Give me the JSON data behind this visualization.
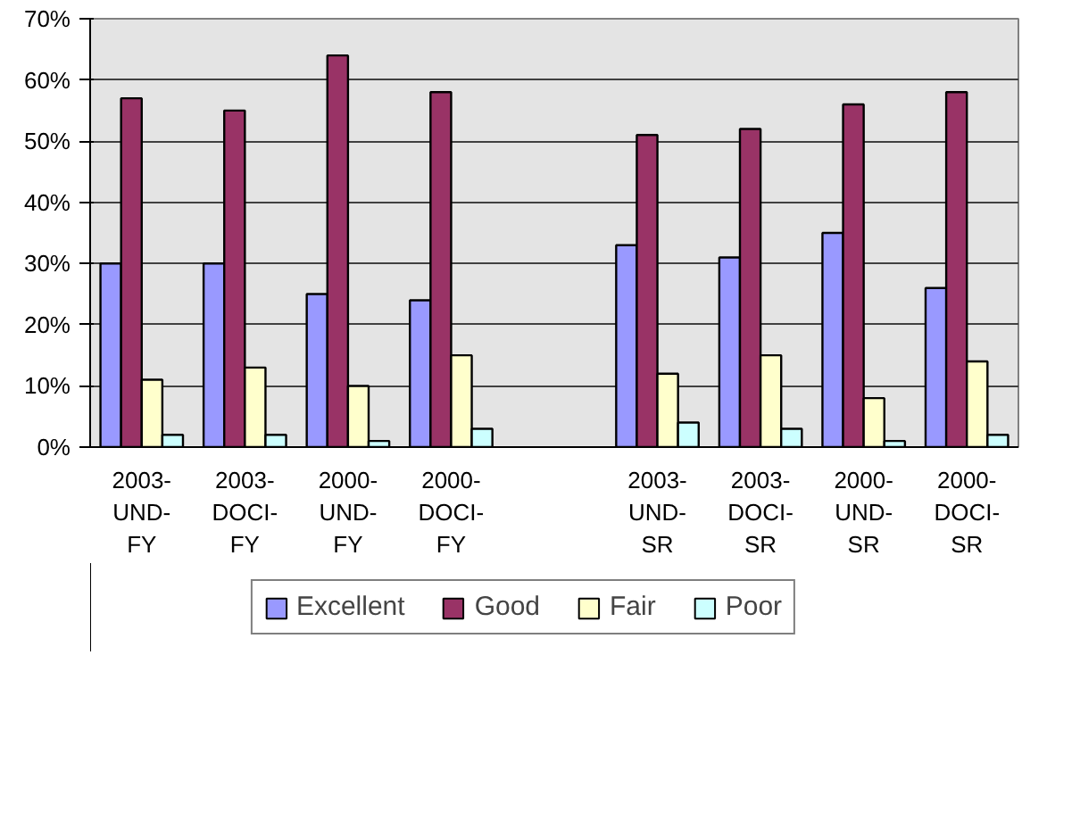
{
  "chart_data": {
    "type": "bar",
    "categories": [
      "2003-\nUND-\nFY",
      "2003-\nDOCI-\nFY",
      "2000-\nUND-\nFY",
      "2000-\nDOCI-\nFY",
      null,
      "2003-\nUND-\nSR",
      "2003-\nDOCI-\nSR",
      "2000-\nUND-\nSR",
      "2000-\nDOCI-\nSR"
    ],
    "series": [
      {
        "name": "Excellent",
        "color": "#9999ff",
        "values": [
          30,
          30,
          25,
          24,
          null,
          33,
          31,
          35,
          26
        ]
      },
      {
        "name": "Good",
        "color": "#993366",
        "values": [
          57,
          55,
          64,
          58,
          null,
          51,
          52,
          56,
          58
        ]
      },
      {
        "name": "Fair",
        "color": "#ffffcc",
        "values": [
          11,
          13,
          10,
          15,
          null,
          12,
          15,
          8,
          14
        ]
      },
      {
        "name": "Poor",
        "color": "#ccffff",
        "values": [
          2,
          2,
          1,
          3,
          null,
          4,
          3,
          1,
          2
        ]
      }
    ],
    "ylim": [
      0,
      70
    ],
    "yticks": [
      {
        "value": 0,
        "label": "0%"
      },
      {
        "value": 10,
        "label": "10%"
      },
      {
        "value": 20,
        "label": "20%"
      },
      {
        "value": 30,
        "label": "30%"
      },
      {
        "value": 40,
        "label": "40%"
      },
      {
        "value": 50,
        "label": "50%"
      },
      {
        "value": 60,
        "label": "60%"
      },
      {
        "value": 70,
        "label": "70%"
      }
    ],
    "grid": "y",
    "legend": "bottom"
  }
}
